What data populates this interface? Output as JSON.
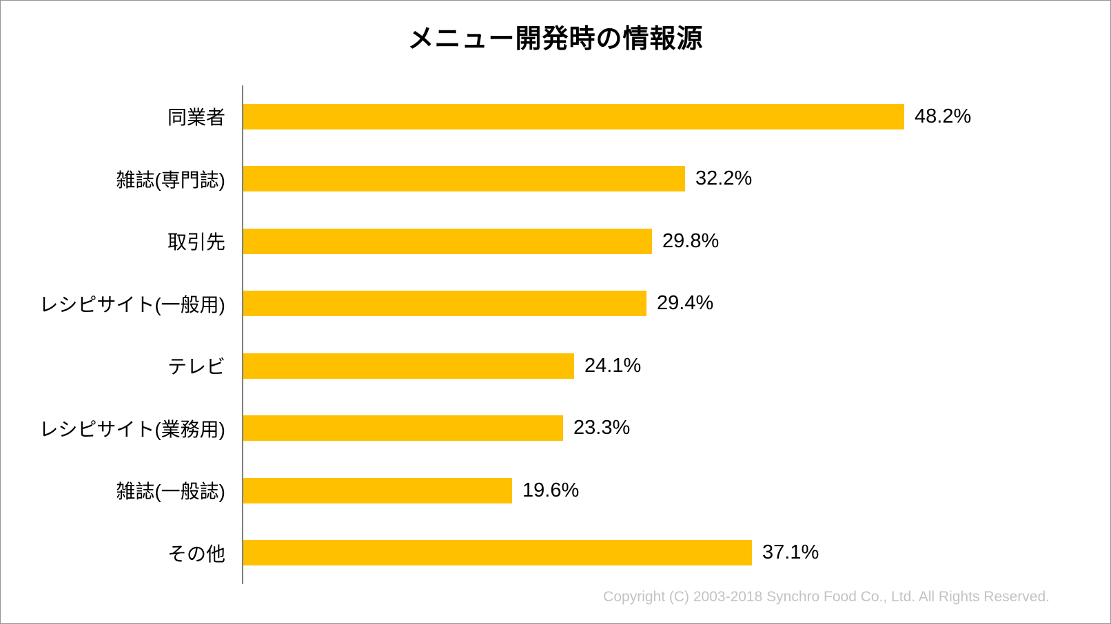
{
  "page": {
    "background_color": "#ffffff",
    "border_color": "#949494"
  },
  "chart_data": {
    "type": "bar",
    "orientation": "horizontal",
    "title": "メニュー開発時の情報源",
    "categories": [
      "同業者",
      "雑誌(専門誌)",
      "取引先",
      "レシピサイト(一般用)",
      "テレビ",
      "レシピサイト(業務用)",
      "雑誌(一般誌)",
      "その他"
    ],
    "values": [
      48.2,
      32.2,
      29.8,
      29.4,
      24.1,
      23.3,
      19.6,
      37.1
    ],
    "value_labels": [
      "48.2%",
      "32.2%",
      "29.8%",
      "29.4%",
      "24.1%",
      "23.3%",
      "19.6%",
      "37.1%"
    ],
    "xlabel": "",
    "ylabel": "",
    "xlim": [
      0,
      50
    ],
    "grid": false,
    "legend": false,
    "bar_color": "#FFC000",
    "axis_line_color": "#808080",
    "label_color": "#000000"
  },
  "footer": {
    "copyright": "Copyright (C) 2003-2018  Synchro Food Co., Ltd. All Rights Reserved."
  }
}
